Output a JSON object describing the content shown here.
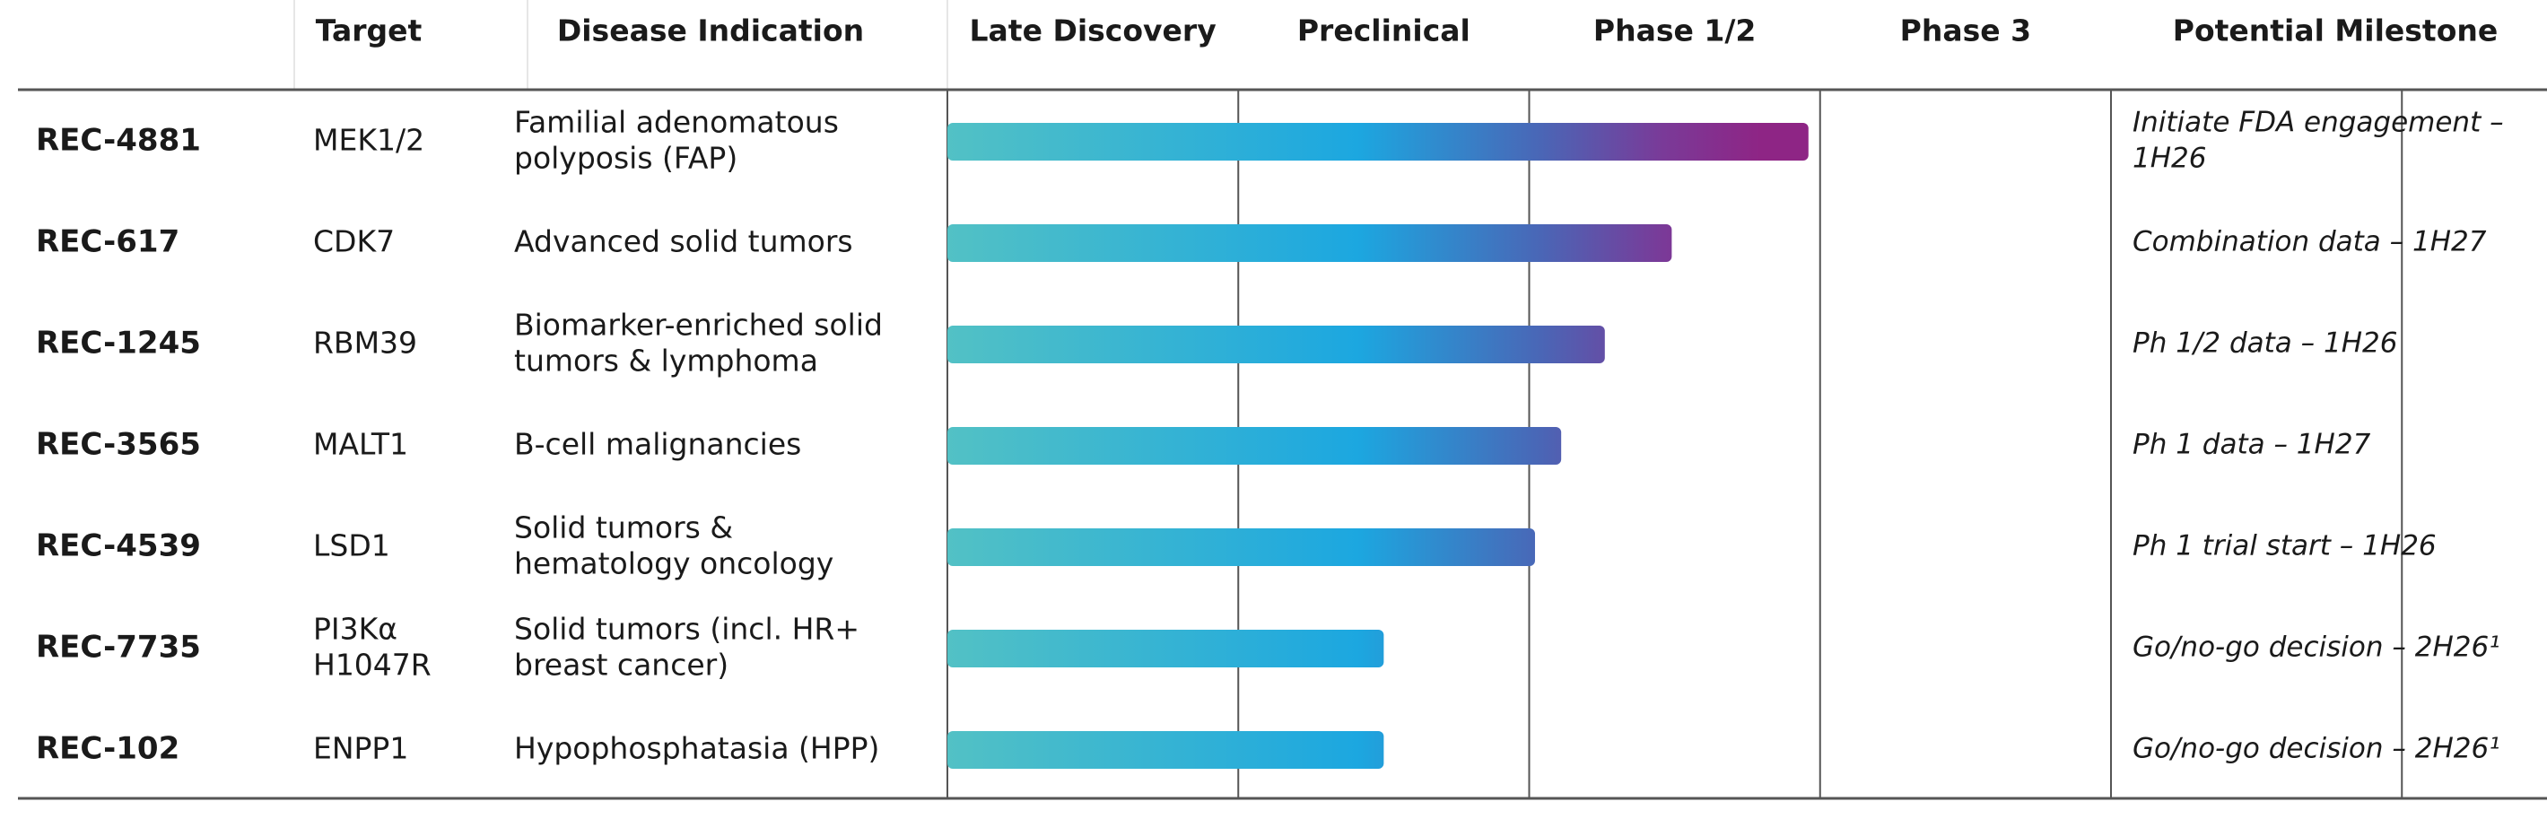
{
  "header": [
    "Target",
    "Disease Indication",
    "Late Discovery",
    "Preclinical",
    "Phase 1/2",
    "Phase 3",
    "Potential Milestone"
  ],
  "rows": [
    {
      "program": "REC-4881",
      "target": [
        "MEK1/2"
      ],
      "indication": [
        "Familial adenomatous",
        "polyposis (FAP)"
      ],
      "progress": 2.96,
      "milestone": [
        "Initiate FDA engagement –",
        "1H26"
      ]
    },
    {
      "program": "REC-617",
      "target": [
        "CDK7"
      ],
      "indication": [
        "Advanced solid tumors"
      ],
      "progress": 2.49,
      "milestone": [
        "Combination data – 1H27"
      ]
    },
    {
      "program": "REC-1245",
      "target": [
        "RBM39"
      ],
      "indication": [
        "Biomarker-enriched solid",
        "tumors & lymphoma"
      ],
      "progress": 2.26,
      "milestone": [
        "Ph 1/2 data – 1H26"
      ]
    },
    {
      "program": "REC-3565",
      "target": [
        "MALT1"
      ],
      "indication": [
        "B-cell malignancies"
      ],
      "progress": 2.11,
      "milestone": [
        "Ph 1 data – 1H27"
      ]
    },
    {
      "program": "REC-4539",
      "target": [
        "LSD1"
      ],
      "indication": [
        "Solid tumors &",
        "hematology oncology"
      ],
      "progress": 2.02,
      "milestone": [
        "Ph 1 trial start – 1H26"
      ]
    },
    {
      "program": "REC-7735",
      "target": [
        "PI3Kα",
        "H1047R"
      ],
      "indication": [
        "Solid tumors (incl. HR+",
        "breast cancer)"
      ],
      "progress": 1.5,
      "milestone": [
        "Go/no-go decision – 2H26¹"
      ]
    },
    {
      "program": "REC-102",
      "target": [
        "ENPP1"
      ],
      "indication": [
        "Hypophosphatasia (HPP)"
      ],
      "progress": 1.5,
      "milestone": [
        "Go/no-go decision – 2H26¹"
      ]
    }
  ]
}
